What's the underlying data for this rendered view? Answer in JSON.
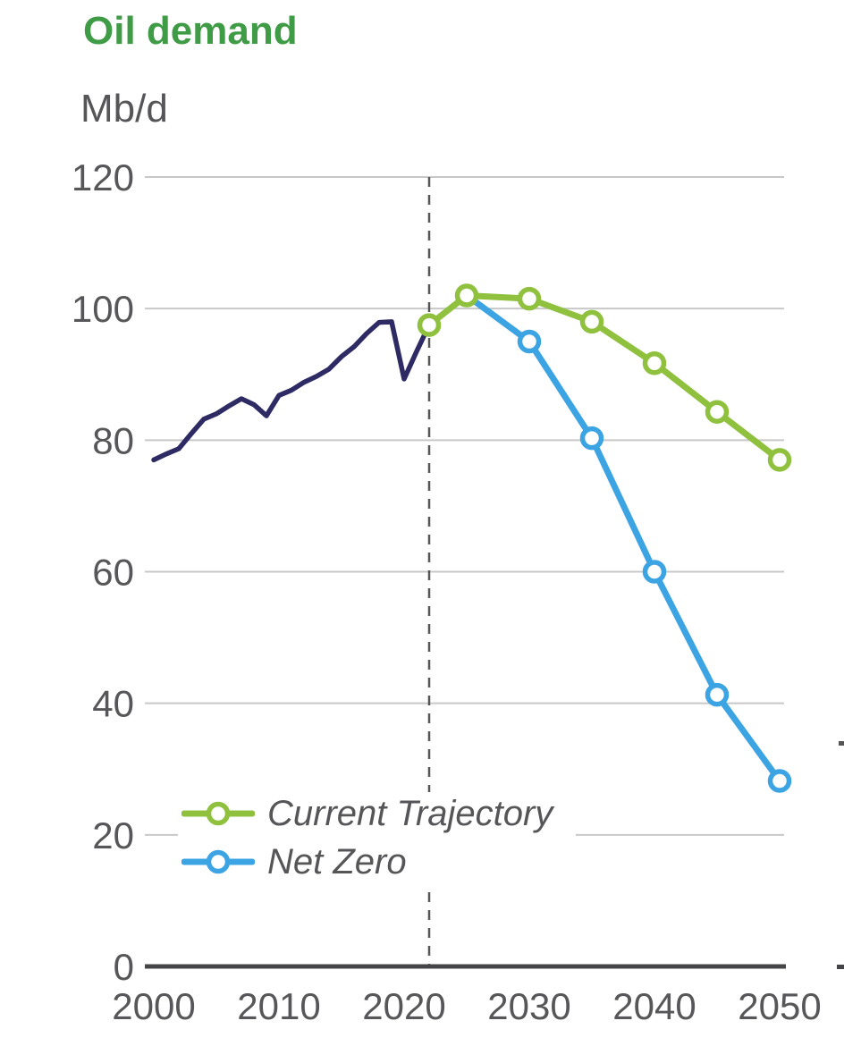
{
  "chart_data": {
    "type": "line",
    "title": "Oil demand",
    "unit": "Mb/d",
    "xlim": [
      2000,
      2050
    ],
    "ylim": [
      0,
      120
    ],
    "yticks": [
      0,
      20,
      40,
      60,
      80,
      100,
      120
    ],
    "xticks": [
      2000,
      2010,
      2020,
      2030,
      2040,
      2050
    ],
    "divider_year": 2022,
    "grid": true,
    "legend_position": "inside-bottom-left",
    "colors": {
      "title": "#3f9b45",
      "unit_label": "#565659",
      "tick_label": "#57575a",
      "gridline": "#c8c8c8",
      "axis": "#454548",
      "divider": "#555555",
      "legend_label": "#565659",
      "history": "#2e2a63",
      "current_trajectory": "#8fc13e",
      "net_zero": "#3da4e3"
    },
    "series": [
      {
        "id": "history",
        "label": "",
        "color": "#2e2a63",
        "width": 5.5,
        "marker": false,
        "in_legend": false,
        "x": [
          2000,
          2001,
          2002,
          2003,
          2004,
          2005,
          2006,
          2007,
          2008,
          2009,
          2010,
          2011,
          2012,
          2013,
          2014,
          2015,
          2016,
          2017,
          2018,
          2019,
          2020,
          2021,
          2022
        ],
        "y": [
          77.0,
          77.9,
          78.7,
          81.0,
          83.2,
          84.0,
          85.2,
          86.3,
          85.4,
          83.7,
          86.8,
          87.6,
          88.8,
          89.7,
          90.8,
          92.7,
          94.2,
          96.2,
          97.9,
          98.0,
          89.3,
          93.5,
          97.5
        ]
      },
      {
        "id": "current-trajectory",
        "label": "Current Trajectory",
        "color": "#8fc13e",
        "width": 7,
        "marker": true,
        "marker_skip_first": false,
        "in_legend": true,
        "x": [
          2022,
          2025,
          2030,
          2035,
          2040,
          2045,
          2050
        ],
        "y": [
          97.5,
          102.0,
          101.5,
          98.0,
          91.7,
          84.3,
          77.0
        ]
      },
      {
        "id": "net-zero",
        "label": "Net Zero",
        "color": "#3da4e3",
        "width": 7,
        "marker": true,
        "marker_skip_first": true,
        "in_legend": true,
        "x": [
          2025,
          2030,
          2035,
          2040,
          2045,
          2050
        ],
        "y": [
          102.0,
          95.0,
          80.3,
          60.0,
          41.3,
          28.2
        ]
      }
    ]
  }
}
